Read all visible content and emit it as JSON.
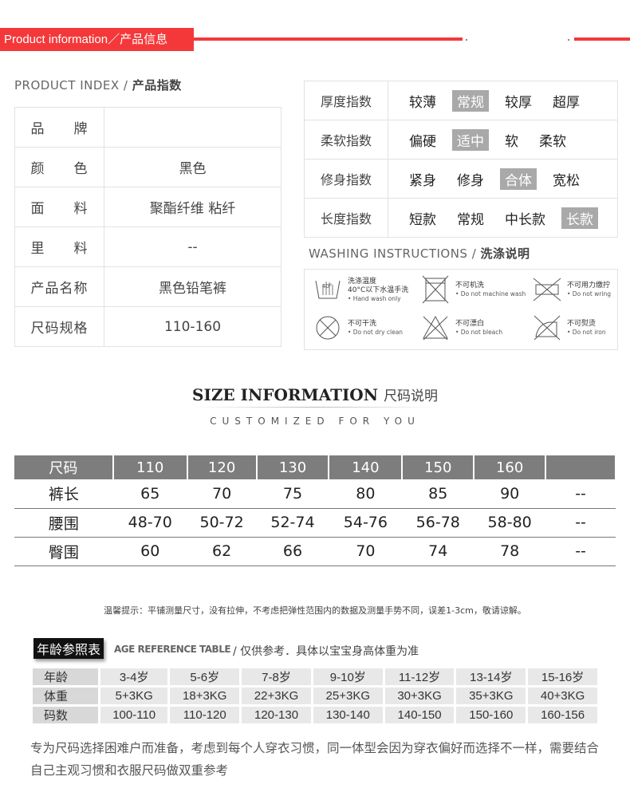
{
  "header": {
    "title": "Product information／产品信息",
    "accent": "#f4383a"
  },
  "product_index": {
    "title_en": "PRODUCT INDEX",
    "title_cn": "产品指数",
    "rows": [
      {
        "label": "品　　牌",
        "value": ""
      },
      {
        "label": "颜　　色",
        "value": "黑色"
      },
      {
        "label": "面　　料",
        "value": "聚酯纤维 粘纤"
      },
      {
        "label": "里　　料",
        "value": "--"
      },
      {
        "label": "产品名称",
        "value": "黑色铅笔裤"
      },
      {
        "label": "尺码规格",
        "value": "110-160"
      }
    ]
  },
  "indices": [
    {
      "label": "厚度指数",
      "options": [
        "较薄",
        "常规",
        "较厚",
        "超厚"
      ],
      "selected": 1
    },
    {
      "label": "柔软指数",
      "options": [
        "偏硬",
        "适中",
        "软",
        "柔软"
      ],
      "selected": 1
    },
    {
      "label": "修身指数",
      "options": [
        "紧身",
        "修身",
        "合体",
        "宽松"
      ],
      "selected": 2
    },
    {
      "label": "长度指数",
      "options": [
        "短款",
        "常规",
        "中长款",
        "长款"
      ],
      "selected": 3
    }
  ],
  "washing": {
    "title_en": "WASHING INSTRUCTIONS",
    "title_cn": "洗涤说明",
    "items": [
      {
        "icon": "hand-wash-icon",
        "cn": "洗涤温度",
        "cn2": "40°C以下水温手洗",
        "en": "• Hand wash only",
        "temp": "40°"
      },
      {
        "icon": "no-machine-wash-icon",
        "cn": "不可机洗",
        "en": "• Do not machine wash"
      },
      {
        "icon": "no-wring-icon",
        "cn": "不可用力缴拧",
        "en": "• Do not wring"
      },
      {
        "icon": "no-dry-clean-icon",
        "cn": "不可干洗",
        "en": "• Do not dry clean"
      },
      {
        "icon": "no-bleach-icon",
        "cn": "不可漂白",
        "en": "• Do not bleach"
      },
      {
        "icon": "no-iron-icon",
        "cn": "不可熨烫",
        "en": "• Do not iron"
      }
    ]
  },
  "size_info": {
    "title_en": "SIZE INFORMATION",
    "title_cn": "尺码说明",
    "subtitle": "CUSTOMIZED FOR YOU",
    "headers": [
      "尺码",
      "110",
      "120",
      "130",
      "140",
      "150",
      "160",
      ""
    ],
    "rows": [
      [
        "裤长",
        "65",
        "70",
        "75",
        "80",
        "85",
        "90",
        "--"
      ],
      [
        "腰围",
        "48-70",
        "50-72",
        "52-74",
        "54-76",
        "56-78",
        "58-80",
        "--"
      ],
      [
        "臀围",
        "60",
        "62",
        "66",
        "70",
        "74",
        "78",
        "--"
      ]
    ],
    "note": "温馨提示：平铺测量尺寸，没有拉伸，不考虑把弹性范围内的数据及测量手势不同，误差1-3cm，敬请谅解。"
  },
  "age_table": {
    "title_cn": "年龄参照表",
    "title_en": "AGE REFERENCE TABLE",
    "caption": "/  仅供参考．具体以宝宝身高体重为准",
    "rows": [
      [
        "年龄",
        "3-4岁",
        "5-6岁",
        "7-8岁",
        "9-10岁",
        "11-12岁",
        "13-14岁",
        "15-16岁"
      ],
      [
        "体重",
        "5+3KG",
        "18+3KG",
        "22+3KG",
        "25+3KG",
        "30+3KG",
        "35+3KG",
        "40+3KG"
      ],
      [
        "码数",
        "100-110",
        "110-120",
        "120-130",
        "130-140",
        "140-150",
        "150-160",
        "160-156"
      ]
    ]
  },
  "footer_text": "专为尺码选择困难户而准备，考虑到每个人穿衣习惯，同一体型会因为穿衣偏好而选择不一样，需要结合自己主观习惯和衣服尺码做双重参考"
}
